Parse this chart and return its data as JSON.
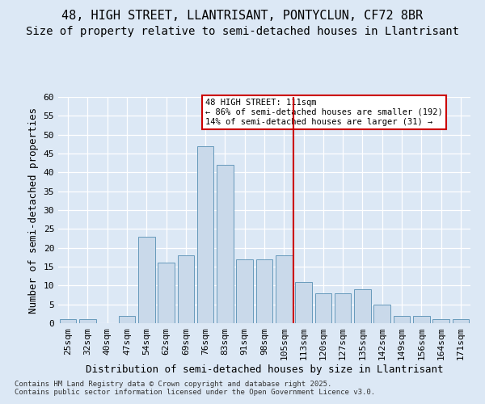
{
  "title1": "48, HIGH STREET, LLANTRISANT, PONTYCLUN, CF72 8BR",
  "title2": "Size of property relative to semi-detached houses in Llantrisant",
  "xlabel": "Distribution of semi-detached houses by size in Llantrisant",
  "ylabel": "Number of semi-detached properties",
  "categories": [
    "25sqm",
    "32sqm",
    "40sqm",
    "47sqm",
    "54sqm",
    "62sqm",
    "69sqm",
    "76sqm",
    "83sqm",
    "91sqm",
    "98sqm",
    "105sqm",
    "113sqm",
    "120sqm",
    "127sqm",
    "135sqm",
    "142sqm",
    "149sqm",
    "156sqm",
    "164sqm",
    "171sqm"
  ],
  "values": [
    1,
    1,
    0,
    2,
    23,
    16,
    18,
    47,
    42,
    17,
    17,
    18,
    11,
    8,
    8,
    9,
    5,
    2,
    2,
    1,
    1
  ],
  "bar_color": "#c9d9ea",
  "bar_edge_color": "#6699bb",
  "vline_index": 12,
  "annotation_line1": "48 HIGH STREET: 111sqm",
  "annotation_line2": "← 86% of semi-detached houses are smaller (192)",
  "annotation_line3": "14% of semi-detached houses are larger (31) →",
  "vline_color": "#cc0000",
  "annotation_edge_color": "#cc0000",
  "ylim": [
    0,
    60
  ],
  "yticks": [
    0,
    5,
    10,
    15,
    20,
    25,
    30,
    35,
    40,
    45,
    50,
    55,
    60
  ],
  "footer": "Contains HM Land Registry data © Crown copyright and database right 2025.\nContains public sector information licensed under the Open Government Licence v3.0.",
  "bg_color": "#dce8f5",
  "title1_fontsize": 11,
  "title2_fontsize": 10,
  "tick_fontsize": 8,
  "label_fontsize": 9,
  "footer_fontsize": 6.5
}
